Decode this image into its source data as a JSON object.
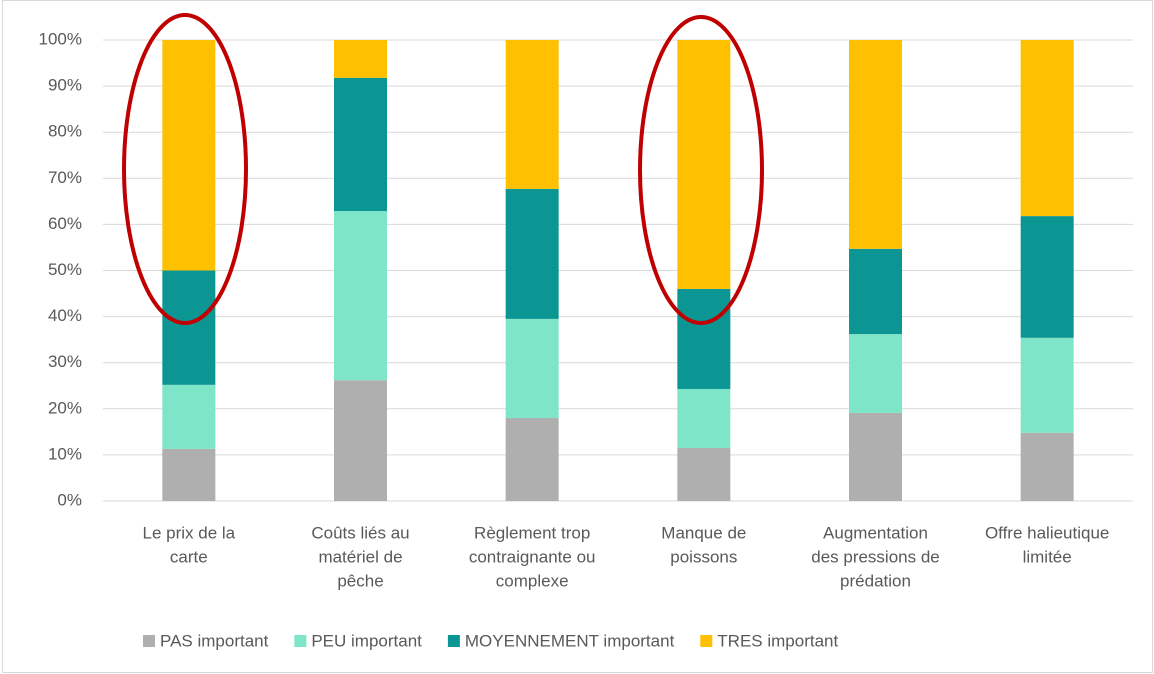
{
  "chart_data": {
    "type": "stacked_bar",
    "categories": [
      [
        "Le prix de la",
        "carte"
      ],
      [
        "Coûts liés au",
        "matériel de",
        "pêche"
      ],
      [
        "Règlement trop",
        "contraignante ou",
        "complexe"
      ],
      [
        "Manque de",
        "poissons"
      ],
      [
        "Augmentation",
        "des pressions de",
        "prédation"
      ],
      [
        "Offre halieutique",
        "limitée"
      ]
    ],
    "series": [
      {
        "name": "PAS important",
        "color": "#afafaf",
        "values": [
          11.3,
          26.2,
          18.0,
          11.5,
          19.1,
          14.8
        ]
      },
      {
        "name": "PEU important",
        "color": "#7fe5c8",
        "values": [
          13.9,
          36.7,
          21.5,
          12.8,
          17.1,
          20.6
        ]
      },
      {
        "name": "MOYENNEMENT important",
        "color": "#0b9694",
        "values": [
          24.8,
          28.9,
          28.2,
          21.7,
          18.5,
          26.4
        ]
      },
      {
        "name": "TRES important",
        "color": "#ffc000",
        "values": [
          50.0,
          8.2,
          32.3,
          54.0,
          45.3,
          38.2
        ]
      }
    ],
    "ylim": [
      0,
      100
    ],
    "yticks": [
      {
        "value": 0,
        "label": "0%"
      },
      {
        "value": 10,
        "label": "10%"
      },
      {
        "value": 20,
        "label": "20%"
      },
      {
        "value": 30,
        "label": "30%"
      },
      {
        "value": 40,
        "label": "40%"
      },
      {
        "value": 50,
        "label": "50%"
      },
      {
        "value": 60,
        "label": "60%"
      },
      {
        "value": 70,
        "label": "70%"
      },
      {
        "value": 80,
        "label": "80%"
      },
      {
        "value": 90,
        "label": "90%"
      },
      {
        "value": 100,
        "label": "100%"
      }
    ],
    "grid": true,
    "legend": "bottom"
  }
}
